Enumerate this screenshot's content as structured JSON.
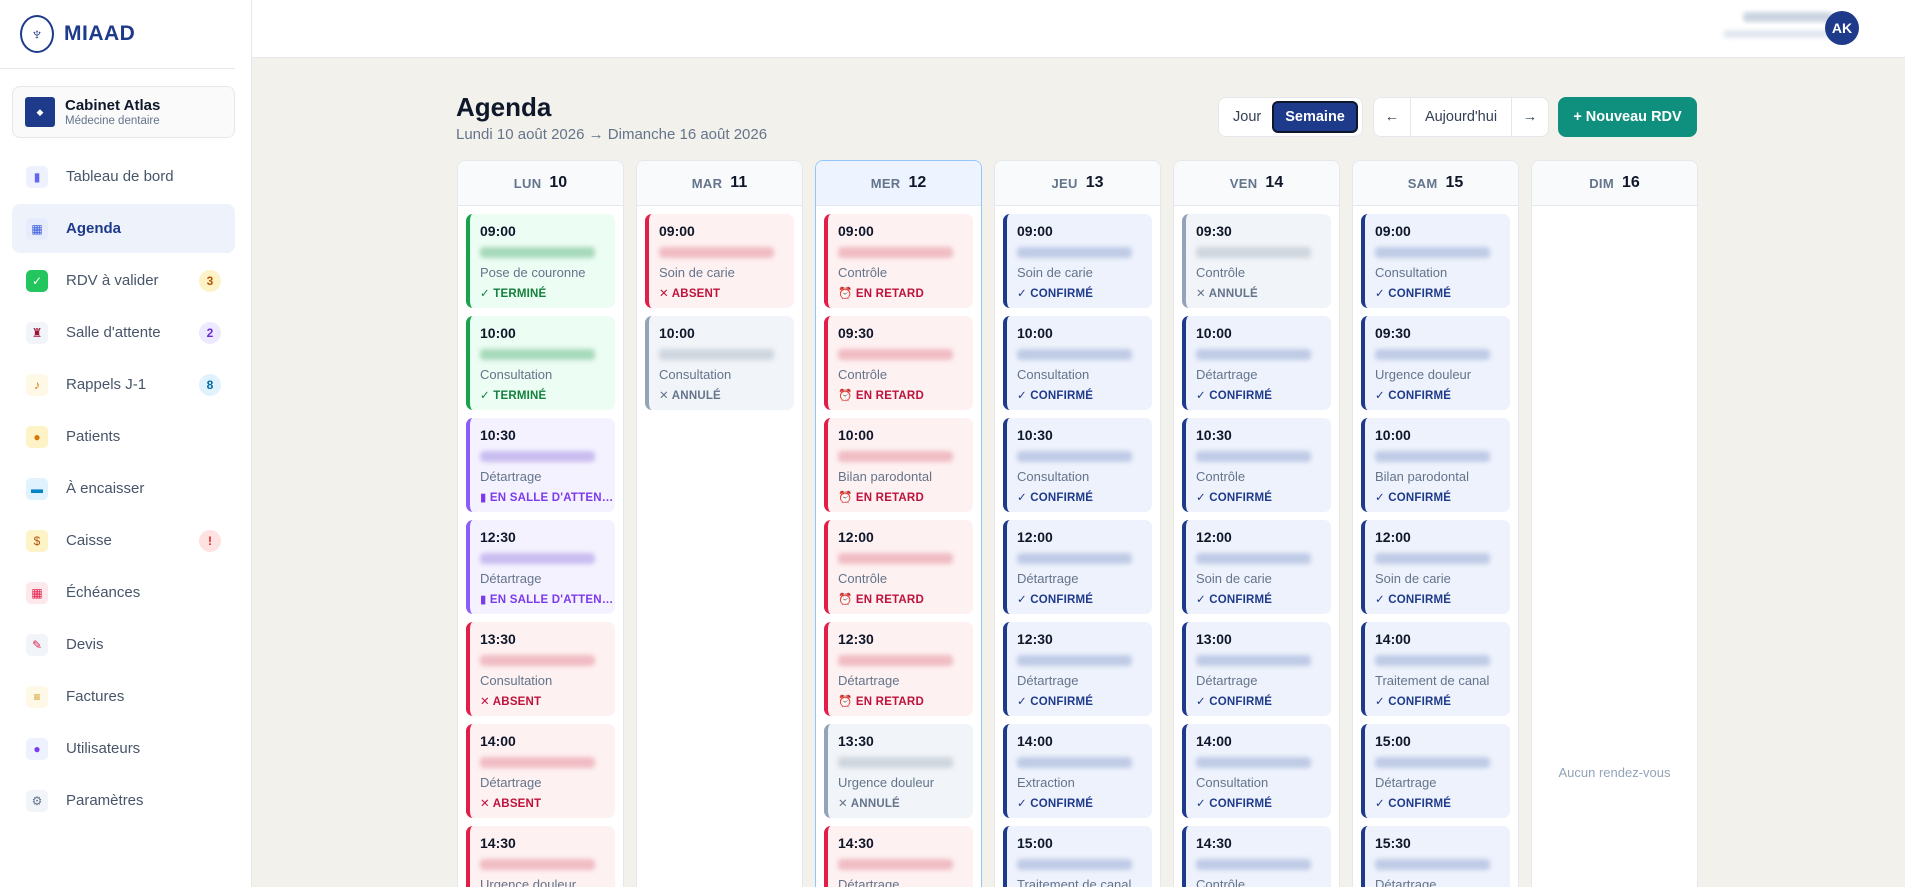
{
  "app": {
    "name": "MIAAD"
  },
  "cabinet": {
    "name": "Cabinet Atlas",
    "subtitle": "Médecine dentaire"
  },
  "nav": [
    {
      "label": "Tableau de bord",
      "icon": "chart-icon",
      "glyph": "▮",
      "bg": "#eef2ff",
      "fg": "#6366f1",
      "badge": ""
    },
    {
      "label": "Agenda",
      "icon": "calendar-icon",
      "glyph": "▦",
      "bg": "#e6ecfb",
      "fg": "#3b5bdb",
      "badge": "",
      "active": true
    },
    {
      "label": "RDV à valider",
      "icon": "check-square-icon",
      "glyph": "✓",
      "bg": "#22c55e",
      "fg": "#ffffff",
      "badge": "3",
      "badge_bg": "#fef3c7",
      "badge_fg": "#b45309"
    },
    {
      "label": "Salle d'attente",
      "icon": "chair-icon",
      "glyph": "♜",
      "bg": "#f1f5f9",
      "fg": "#9f1239",
      "badge": "2",
      "badge_bg": "#ede9fe",
      "badge_fg": "#6d28d9"
    },
    {
      "label": "Rappels J-1",
      "icon": "bell-icon",
      "glyph": "♪",
      "bg": "#fef9e7",
      "fg": "#d97706",
      "badge": "8",
      "badge_bg": "#e0f2fe",
      "badge_fg": "#0369a1"
    },
    {
      "label": "Patients",
      "icon": "person-icon",
      "glyph": "●",
      "bg": "#fef3c7",
      "fg": "#d97706",
      "badge": ""
    },
    {
      "label": "À encaisser",
      "icon": "card-icon",
      "glyph": "▬",
      "bg": "#e0f2fe",
      "fg": "#0284c7",
      "badge": ""
    },
    {
      "label": "Caisse",
      "icon": "money-bag-icon",
      "glyph": "$",
      "bg": "#fef3c7",
      "fg": "#b45309",
      "badge": "!",
      "badge_bg": "#fee2e2",
      "badge_fg": "#dc2626"
    },
    {
      "label": "Échéances",
      "icon": "calendar-due-icon",
      "glyph": "▦",
      "bg": "#fde8ec",
      "fg": "#e11d48",
      "badge": ""
    },
    {
      "label": "Devis",
      "icon": "document-pen-icon",
      "glyph": "✎",
      "bg": "#f1f5f9",
      "fg": "#e11d48",
      "badge": ""
    },
    {
      "label": "Factures",
      "icon": "receipt-icon",
      "glyph": "≡",
      "bg": "#fef9e7",
      "fg": "#ca8a04",
      "badge": ""
    },
    {
      "label": "Utilisateurs",
      "icon": "users-icon",
      "glyph": "●",
      "bg": "#eef2ff",
      "fg": "#7c3aed",
      "badge": ""
    },
    {
      "label": "Paramètres",
      "icon": "gear-icon",
      "glyph": "⚙",
      "bg": "#f1f5f9",
      "fg": "#64748b",
      "badge": ""
    }
  ],
  "user": {
    "initials": "AK"
  },
  "header": {
    "title": "Agenda",
    "subtitle": "Lundi 10 août 2026 → Dimanche 16 août 2026",
    "view_day": "Jour",
    "view_week": "Semaine",
    "prev": "←",
    "today": "Aujourd'hui",
    "next": "→",
    "new_appointment": "+ Nouveau RDV"
  },
  "status_labels": {
    "termine": "✓ TERMINÉ",
    "salle": "▮ EN SALLE D'ATTENTE",
    "absent": "✕ ABSENT",
    "retard": "⏰ EN RETARD",
    "annule": "✕ ANNULÉ",
    "confirme": "✓ CONFIRMÉ"
  },
  "days": [
    {
      "name": "LUN",
      "num": "10",
      "events": [
        {
          "time": "09:00",
          "type": "Pose de couronne",
          "status": "termine"
        },
        {
          "time": "10:00",
          "type": "Consultation",
          "status": "termine"
        },
        {
          "time": "10:30",
          "type": "Détartrage",
          "status": "salle"
        },
        {
          "time": "12:30",
          "type": "Détartrage",
          "status": "salle"
        },
        {
          "time": "13:30",
          "type": "Consultation",
          "status": "absent"
        },
        {
          "time": "14:00",
          "type": "Détartrage",
          "status": "absent"
        },
        {
          "time": "14:30",
          "type": "Urgence douleur",
          "status": "absent"
        }
      ]
    },
    {
      "name": "MAR",
      "num": "11",
      "events": [
        {
          "time": "09:00",
          "type": "Soin de carie",
          "status": "absent"
        },
        {
          "time": "10:00",
          "type": "Consultation",
          "status": "annule"
        }
      ]
    },
    {
      "name": "MER",
      "num": "12",
      "today": true,
      "events": [
        {
          "time": "09:00",
          "type": "Contrôle",
          "status": "retard"
        },
        {
          "time": "09:30",
          "type": "Contrôle",
          "status": "retard"
        },
        {
          "time": "10:00",
          "type": "Bilan parodontal",
          "status": "retard"
        },
        {
          "time": "12:00",
          "type": "Contrôle",
          "status": "retard"
        },
        {
          "time": "12:30",
          "type": "Détartrage",
          "status": "retard"
        },
        {
          "time": "13:30",
          "type": "Urgence douleur",
          "status": "annule"
        },
        {
          "time": "14:30",
          "type": "Détartrage",
          "status": "retard"
        }
      ]
    },
    {
      "name": "JEU",
      "num": "13",
      "events": [
        {
          "time": "09:00",
          "type": "Soin de carie",
          "status": "confirme"
        },
        {
          "time": "10:00",
          "type": "Consultation",
          "status": "confirme"
        },
        {
          "time": "10:30",
          "type": "Consultation",
          "status": "confirme"
        },
        {
          "time": "12:00",
          "type": "Détartrage",
          "status": "confirme"
        },
        {
          "time": "12:30",
          "type": "Détartrage",
          "status": "confirme"
        },
        {
          "time": "14:00",
          "type": "Extraction",
          "status": "confirme"
        },
        {
          "time": "15:00",
          "type": "Traitement de canal",
          "status": "confirme"
        }
      ]
    },
    {
      "name": "VEN",
      "num": "14",
      "events": [
        {
          "time": "09:30",
          "type": "Contrôle",
          "status": "annule"
        },
        {
          "time": "10:00",
          "type": "Détartrage",
          "status": "confirme"
        },
        {
          "time": "10:30",
          "type": "Contrôle",
          "status": "confirme"
        },
        {
          "time": "12:00",
          "type": "Soin de carie",
          "status": "confirme"
        },
        {
          "time": "13:00",
          "type": "Détartrage",
          "status": "confirme"
        },
        {
          "time": "14:00",
          "type": "Consultation",
          "status": "confirme"
        },
        {
          "time": "14:30",
          "type": "Contrôle",
          "status": "confirme"
        }
      ]
    },
    {
      "name": "SAM",
      "num": "15",
      "events": [
        {
          "time": "09:00",
          "type": "Consultation",
          "status": "confirme"
        },
        {
          "time": "09:30",
          "type": "Urgence douleur",
          "status": "confirme"
        },
        {
          "time": "10:00",
          "type": "Bilan parodontal",
          "status": "confirme"
        },
        {
          "time": "12:00",
          "type": "Soin de carie",
          "status": "confirme"
        },
        {
          "time": "14:00",
          "type": "Traitement de canal",
          "status": "confirme"
        },
        {
          "time": "15:00",
          "type": "Détartrage",
          "status": "confirme"
        },
        {
          "time": "15:30",
          "type": "Détartrage",
          "status": "confirme"
        }
      ]
    },
    {
      "name": "DIM",
      "num": "16",
      "events": [],
      "empty_text": "Aucun rendez-vous"
    }
  ]
}
